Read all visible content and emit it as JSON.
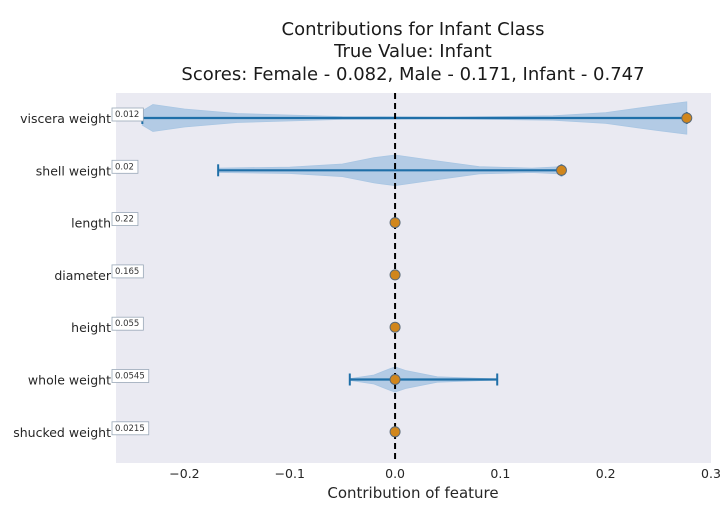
{
  "chart_data": {
    "type": "violin",
    "title": [
      "Contributions for Infant Class",
      "True Value: Infant",
      "Scores: Female - 0.082, Male - 0.171, Infant - 0.747"
    ],
    "xlabel": "Contribution of feature",
    "ylabel": "",
    "xlim": [
      -0.265,
      0.3
    ],
    "xticks": [
      -0.2,
      -0.1,
      0.0,
      0.1,
      0.2,
      0.3
    ],
    "xtick_labels": [
      "−0.2",
      "−0.1",
      "0.0",
      "0.1",
      "0.2",
      "0.3"
    ],
    "zero_line": 0.0,
    "colors": {
      "plot_bg": "#eaeaf2",
      "violin_fill": "#a9c6e3",
      "range_line": "#1f6fa8",
      "point": "#d1861c",
      "zero_line": "#000000"
    },
    "features": [
      {
        "name": "viscera weight",
        "value_label": "0.012",
        "min": -0.24,
        "max": 0.277,
        "point": 0.277,
        "density": [
          [
            -0.24,
            0.4
          ],
          [
            -0.23,
            0.75
          ],
          [
            -0.2,
            0.5
          ],
          [
            -0.15,
            0.25
          ],
          [
            -0.05,
            0.08
          ],
          [
            0.05,
            0.05
          ],
          [
            0.15,
            0.12
          ],
          [
            0.2,
            0.3
          ],
          [
            0.25,
            0.7
          ],
          [
            0.277,
            0.9
          ]
        ]
      },
      {
        "name": "shell weight",
        "value_label": "0.02",
        "min": -0.168,
        "max": 0.158,
        "point": 0.158,
        "density": [
          [
            -0.168,
            0.12
          ],
          [
            -0.1,
            0.18
          ],
          [
            -0.05,
            0.35
          ],
          [
            -0.02,
            0.7
          ],
          [
            0.0,
            0.85
          ],
          [
            0.03,
            0.6
          ],
          [
            0.08,
            0.2
          ],
          [
            0.13,
            0.12
          ],
          [
            0.158,
            0.2
          ]
        ]
      },
      {
        "name": "length",
        "value_label": "0.22",
        "min": 0.0,
        "max": 0.0,
        "point": 0.0,
        "density": []
      },
      {
        "name": "diameter",
        "value_label": "0.165",
        "min": 0.0,
        "max": 0.0,
        "point": 0.0,
        "density": []
      },
      {
        "name": "height",
        "value_label": "0.055",
        "min": 0.0,
        "max": 0.0,
        "point": 0.0,
        "density": []
      },
      {
        "name": "whole weight",
        "value_label": "0.0545",
        "min": -0.043,
        "max": 0.097,
        "point": 0.0,
        "density": [
          [
            -0.043,
            0.05
          ],
          [
            -0.02,
            0.25
          ],
          [
            -0.005,
            0.6
          ],
          [
            0.0,
            0.7
          ],
          [
            0.01,
            0.5
          ],
          [
            0.04,
            0.15
          ],
          [
            0.097,
            0.03
          ]
        ]
      },
      {
        "name": "shucked weight",
        "value_label": "0.0215",
        "min": 0.0,
        "max": 0.0,
        "point": 0.0,
        "density": []
      }
    ]
  }
}
